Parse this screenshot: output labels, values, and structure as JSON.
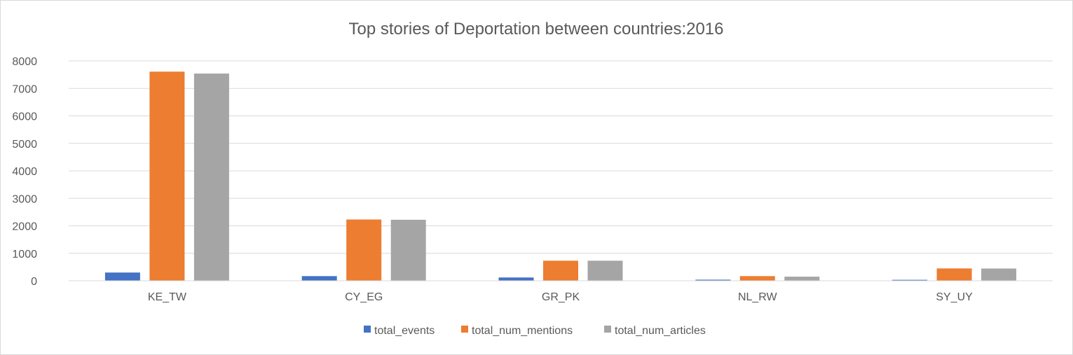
{
  "chart_data": {
    "type": "bar",
    "title": "Top stories of Deportation between countries:2016",
    "xlabel": "",
    "ylabel": "",
    "categories": [
      "KE_TW",
      "CY_EG",
      "GR_PK",
      "NL_RW",
      "SY_UY"
    ],
    "ylim": [
      0,
      8000
    ],
    "yticks": [
      "0",
      "1000",
      "2000",
      "3000",
      "4000",
      "5000",
      "6000",
      "7000",
      "8000"
    ],
    "grid": true,
    "legend_position": "bottom",
    "series": [
      {
        "name": "total_events",
        "color": "#4472c4",
        "values": [
          300,
          170,
          120,
          40,
          35
        ]
      },
      {
        "name": "total_num_mentions",
        "color": "#ed7d31",
        "values": [
          7610,
          2230,
          730,
          170,
          450
        ]
      },
      {
        "name": "total_num_articles",
        "color": "#a5a5a5",
        "values": [
          7540,
          2220,
          730,
          150,
          445
        ]
      }
    ]
  }
}
